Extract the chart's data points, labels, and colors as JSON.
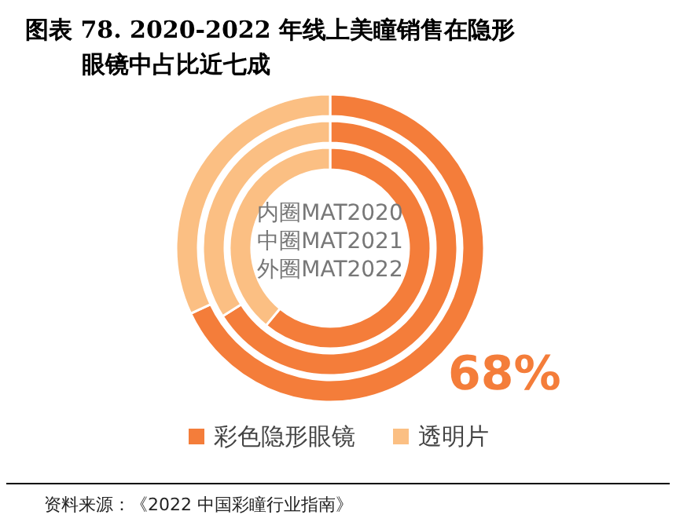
{
  "chart_data": {
    "type": "donut",
    "title": "图表 78. 2020-2022 年线上美瞳销售在隐形眼镜中占比近七成",
    "categories": [
      "彩色隐形眼镜",
      "透明片"
    ],
    "colors": [
      "#f47d3a",
      "#fbbf83"
    ],
    "series": [
      {
        "values": [
          61,
          39
        ]
      },
      {
        "values": [
          66,
          34
        ]
      },
      {
        "values": [
          68,
          32
        ],
        "value_labels": [
          "68%",
          null
        ]
      }
    ],
    "legend": "bottom",
    "annotations": [
      "内圈MAT2020",
      "中圈MAT2021",
      "外圈MAT2022",
      "资料来源：《2022 中国彩瞳行业指南》"
    ]
  }
}
